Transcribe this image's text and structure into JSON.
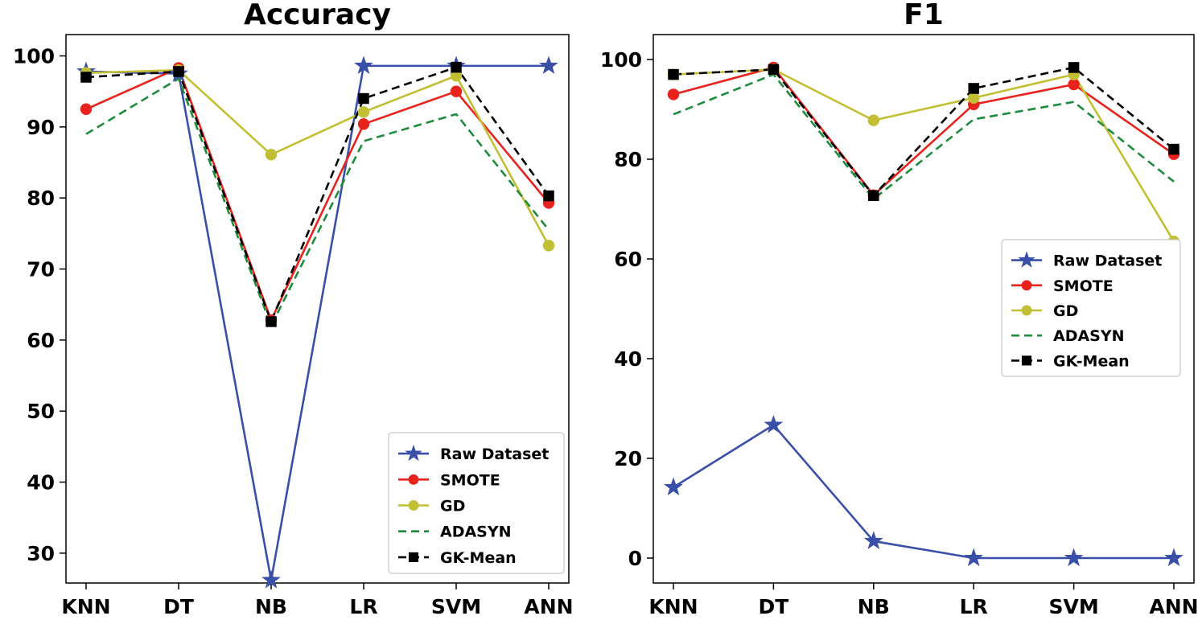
{
  "chart_data": [
    {
      "type": "line",
      "title": "Accuracy",
      "xlabel": "",
      "ylabel": "",
      "categories": [
        "KNN",
        "DT",
        "NB",
        "LR",
        "SVM",
        "ANN"
      ],
      "ylim": [
        25.8,
        103.0
      ],
      "yticks": [
        30,
        40,
        50,
        60,
        70,
        80,
        90,
        100
      ],
      "legend_position": "lower-right",
      "series": [
        {
          "name": "Raw Dataset",
          "values": [
            97.8,
            97.5,
            26.2,
            98.6,
            98.6,
            98.6
          ],
          "color": "#3a4fa8",
          "marker": "star",
          "dash": "solid"
        },
        {
          "name": "SMOTE",
          "values": [
            92.5,
            98.3,
            62.8,
            90.4,
            95.0,
            79.3
          ],
          "color": "#e8231e",
          "marker": "circle",
          "dash": "solid"
        },
        {
          "name": "GD",
          "values": [
            97.6,
            98.0,
            86.1,
            92.1,
            97.2,
            73.3
          ],
          "color": "#c2bf34",
          "marker": "circle",
          "dash": "solid"
        },
        {
          "name": "ADASYN",
          "values": [
            89.0,
            96.8,
            62.0,
            88.0,
            91.8,
            75.5
          ],
          "color": "#1e8c3c",
          "marker": "none",
          "dash": "dashed"
        },
        {
          "name": "GK-Mean",
          "values": [
            97.0,
            97.8,
            62.6,
            94.0,
            98.4,
            80.3
          ],
          "color": "#000000",
          "marker": "square",
          "dash": "dashed"
        }
      ]
    },
    {
      "type": "line",
      "title": "F1",
      "xlabel": "",
      "ylabel": "",
      "categories": [
        "KNN",
        "DT",
        "NB",
        "LR",
        "SVM",
        "ANN"
      ],
      "ylim": [
        -5.0,
        105.0
      ],
      "yticks": [
        0,
        20,
        40,
        60,
        80,
        100
      ],
      "legend_position": "center-right",
      "series": [
        {
          "name": "Raw Dataset",
          "values": [
            14.2,
            26.7,
            3.4,
            0.0,
            0.0,
            0.0
          ],
          "color": "#3a4fa8",
          "marker": "star",
          "dash": "solid"
        },
        {
          "name": "SMOTE",
          "values": [
            93.0,
            98.4,
            72.8,
            91.0,
            95.0,
            81.0
          ],
          "color": "#e8231e",
          "marker": "circle",
          "dash": "solid"
        },
        {
          "name": "GD",
          "values": [
            97.0,
            98.0,
            87.8,
            92.3,
            97.0,
            63.5
          ],
          "color": "#c2bf34",
          "marker": "circle",
          "dash": "solid"
        },
        {
          "name": "ADASYN",
          "values": [
            89.0,
            97.0,
            72.0,
            88.0,
            91.5,
            75.5
          ],
          "color": "#1e8c3c",
          "marker": "none",
          "dash": "dashed"
        },
        {
          "name": "GK-Mean",
          "values": [
            97.0,
            98.0,
            72.7,
            94.2,
            98.4,
            82.0
          ],
          "color": "#000000",
          "marker": "square",
          "dash": "dashed"
        }
      ]
    }
  ]
}
